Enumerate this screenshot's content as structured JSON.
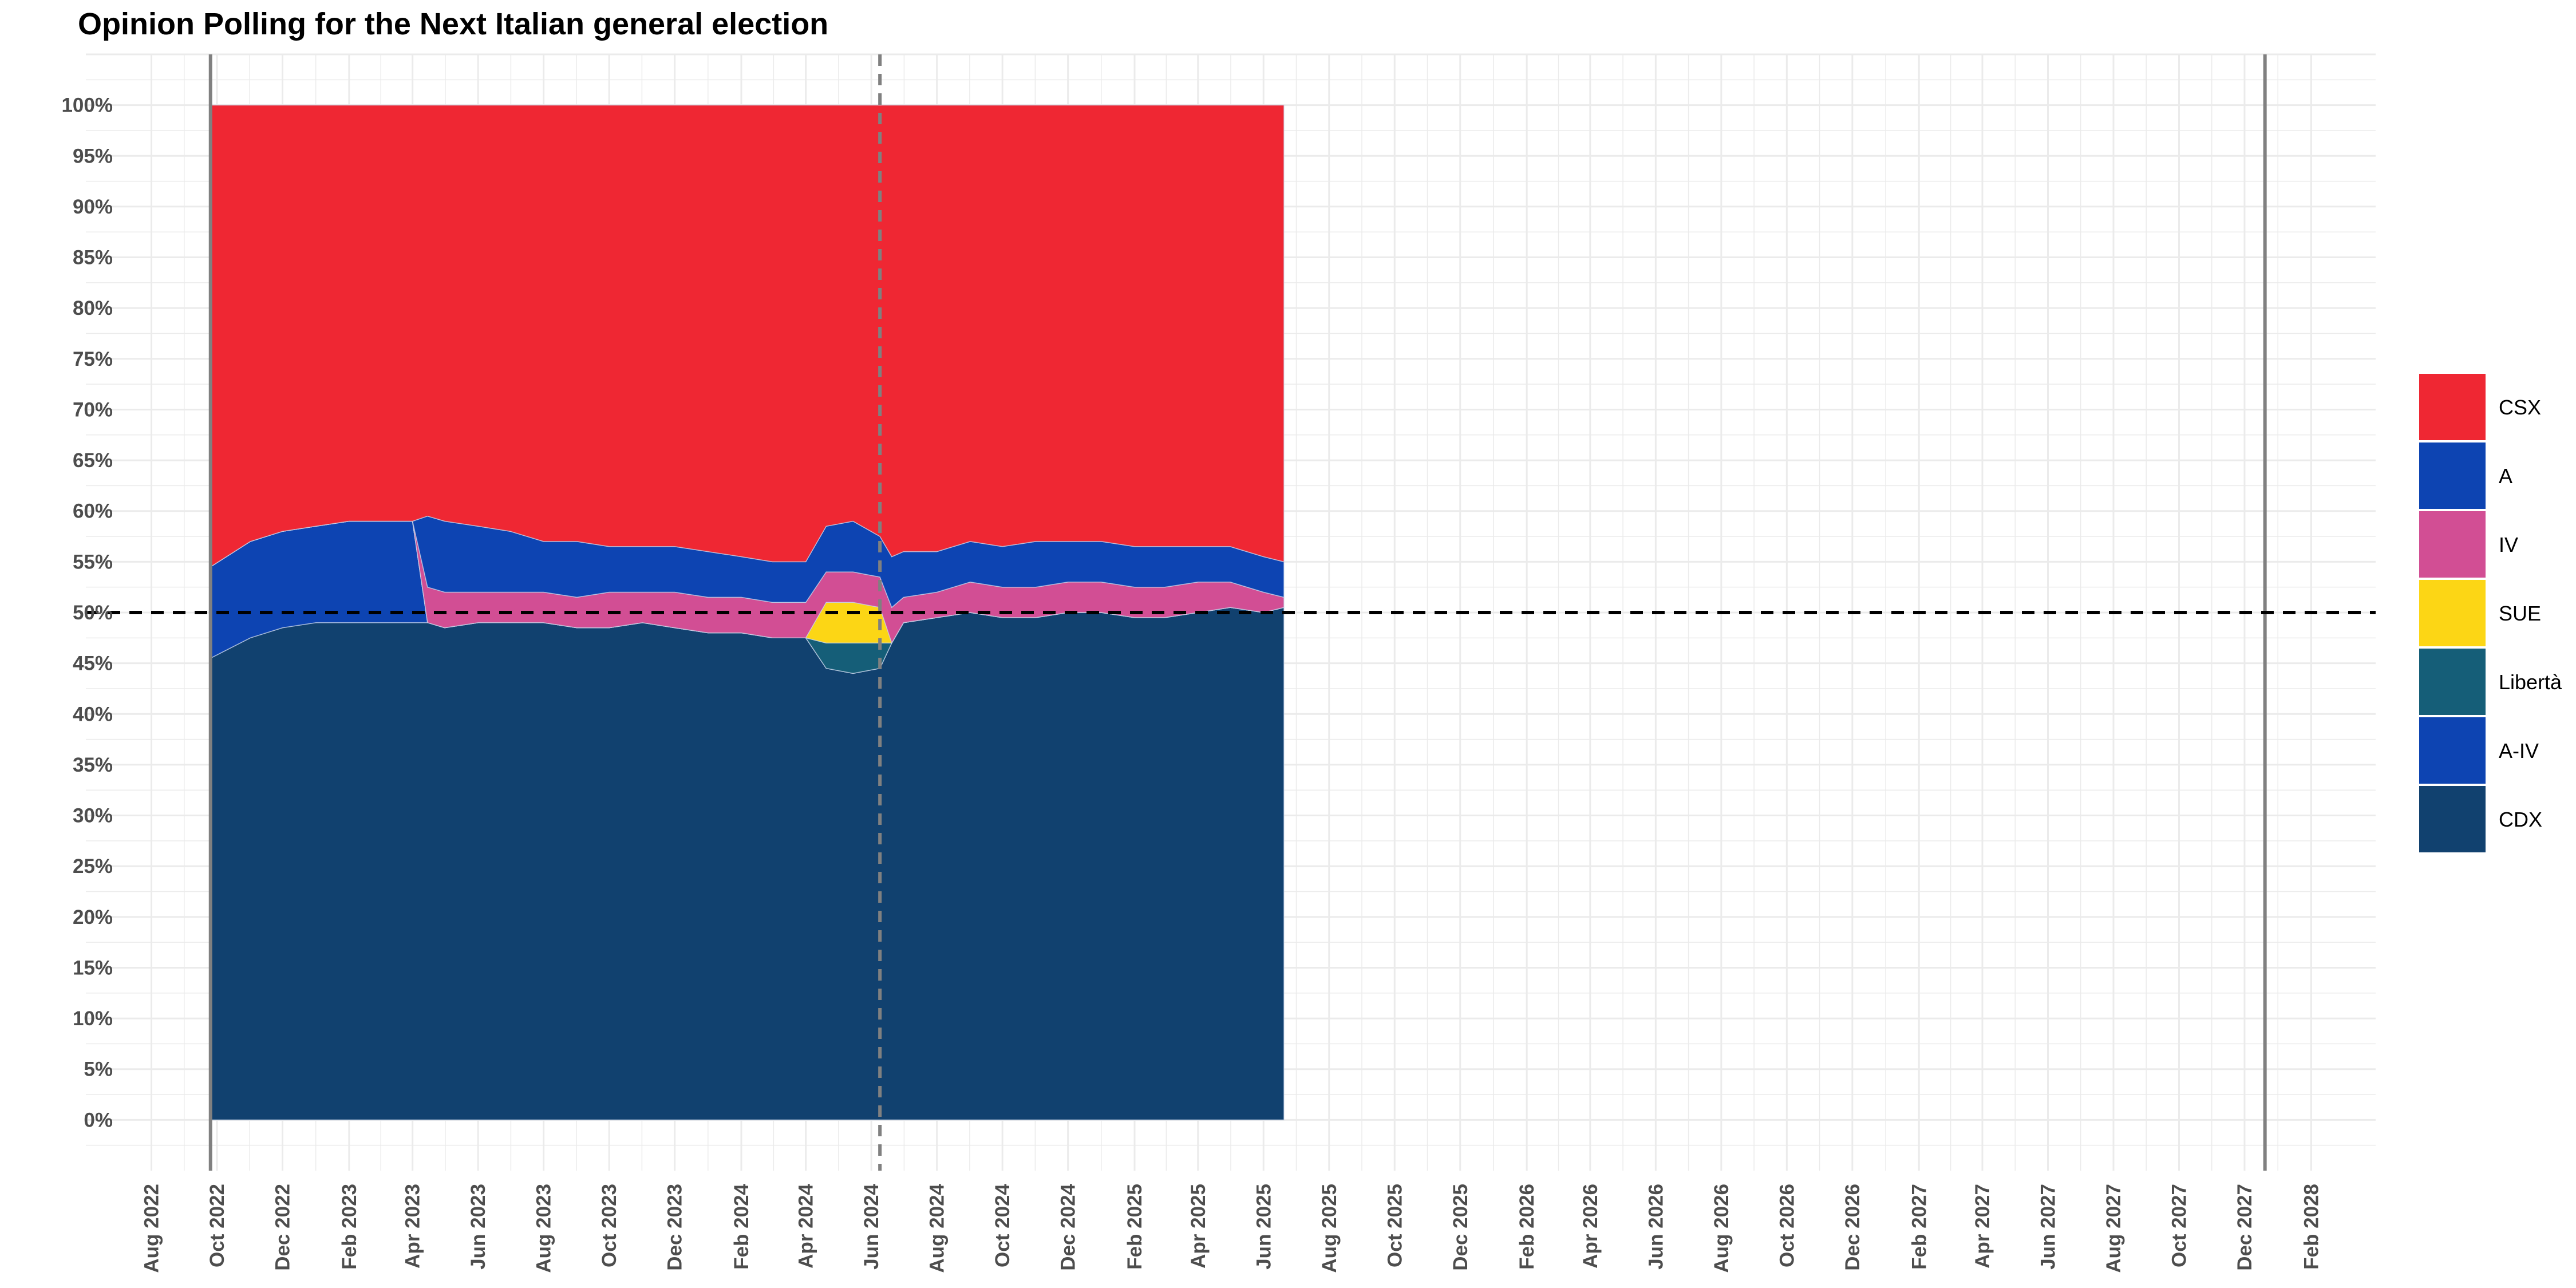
{
  "chart_data": {
    "type": "area",
    "stacked": true,
    "title": "Opinion Polling for the Next Italian general election",
    "xlabel": "",
    "ylabel": "",
    "x_range": [
      "2022-06-01",
      "2028-04-01"
    ],
    "ylim": [
      -5,
      105
    ],
    "y_ticks": [
      "0%",
      "5%",
      "10%",
      "15%",
      "20%",
      "25%",
      "30%",
      "35%",
      "40%",
      "45%",
      "50%",
      "55%",
      "60%",
      "65%",
      "70%",
      "75%",
      "80%",
      "85%",
      "90%",
      "95%",
      "100%"
    ],
    "x_ticks": [
      {
        "date": "2022-08-01",
        "label": "Aug 2022"
      },
      {
        "date": "2022-10-01",
        "label": "Oct 2022"
      },
      {
        "date": "2022-12-01",
        "label": "Dec 2022"
      },
      {
        "date": "2023-02-01",
        "label": "Feb 2023"
      },
      {
        "date": "2023-04-01",
        "label": "Apr 2023"
      },
      {
        "date": "2023-06-01",
        "label": "Jun 2023"
      },
      {
        "date": "2023-08-01",
        "label": "Aug 2023"
      },
      {
        "date": "2023-10-01",
        "label": "Oct 2023"
      },
      {
        "date": "2023-12-01",
        "label": "Dec 2023"
      },
      {
        "date": "2024-02-01",
        "label": "Feb 2024"
      },
      {
        "date": "2024-04-01",
        "label": "Apr 2024"
      },
      {
        "date": "2024-06-01",
        "label": "Jun 2024"
      },
      {
        "date": "2024-08-01",
        "label": "Aug 2024"
      },
      {
        "date": "2024-10-01",
        "label": "Oct 2024"
      },
      {
        "date": "2024-12-01",
        "label": "Dec 2024"
      },
      {
        "date": "2025-02-01",
        "label": "Feb 2025"
      },
      {
        "date": "2025-04-01",
        "label": "Apr 2025"
      },
      {
        "date": "2025-06-01",
        "label": "Jun 2025"
      },
      {
        "date": "2025-08-01",
        "label": "Aug 2025"
      },
      {
        "date": "2025-10-01",
        "label": "Oct 2025"
      },
      {
        "date": "2025-12-01",
        "label": "Dec 2025"
      },
      {
        "date": "2026-02-01",
        "label": "Feb 2026"
      },
      {
        "date": "2026-04-01",
        "label": "Apr 2026"
      },
      {
        "date": "2026-06-01",
        "label": "Jun 2026"
      },
      {
        "date": "2026-08-01",
        "label": "Aug 2026"
      },
      {
        "date": "2026-10-01",
        "label": "Oct 2026"
      },
      {
        "date": "2026-12-01",
        "label": "Dec 2026"
      },
      {
        "date": "2027-02-01",
        "label": "Feb 2027"
      },
      {
        "date": "2027-04-01",
        "label": "Apr 2027"
      },
      {
        "date": "2027-06-01",
        "label": "Jun 2027"
      },
      {
        "date": "2027-08-01",
        "label": "Aug 2027"
      },
      {
        "date": "2027-10-01",
        "label": "Oct 2027"
      },
      {
        "date": "2027-12-01",
        "label": "Dec 2027"
      },
      {
        "date": "2028-02-01",
        "label": "Feb 2028"
      }
    ],
    "reference_lines": [
      {
        "axis": "x",
        "date": "2022-09-25",
        "style": "solid",
        "color": "#808080"
      },
      {
        "axis": "x",
        "date": "2024-06-09",
        "style": "dashed",
        "color": "#808080"
      },
      {
        "axis": "x",
        "date": "2027-12-20",
        "style": "solid",
        "color": "#808080"
      },
      {
        "axis": "y",
        "value": 50,
        "style": "dashed",
        "color": "#000000"
      }
    ],
    "grid": true,
    "legend_position": "right",
    "legend": [
      {
        "name": "CSX",
        "color": "#ef2733"
      },
      {
        "name": "A",
        "color": "#0d44b2"
      },
      {
        "name": "IV",
        "color": "#d24e94"
      },
      {
        "name": "SUE",
        "color": "#fcd615"
      },
      {
        "name": "Libertà",
        "color": "#155e78"
      },
      {
        "name": "A-IV",
        "color": "#0d44b2"
      },
      {
        "name": "CDX",
        "color": "#11416f"
      }
    ],
    "stack_order_bottom_to_top": [
      "CDX",
      "A-IV",
      "Libertà",
      "SUE",
      "IV",
      "A",
      "CSX"
    ],
    "x": [
      "2022-09-25",
      "2022-11-01",
      "2022-12-01",
      "2023-01-01",
      "2023-02-01",
      "2023-03-01",
      "2023-04-01",
      "2023-04-15",
      "2023-05-01",
      "2023-06-01",
      "2023-07-01",
      "2023-08-01",
      "2023-09-01",
      "2023-10-01",
      "2023-11-01",
      "2023-12-01",
      "2024-01-01",
      "2024-02-01",
      "2024-03-01",
      "2024-04-01",
      "2024-04-20",
      "2024-05-15",
      "2024-06-09",
      "2024-06-20",
      "2024-07-01",
      "2024-08-01",
      "2024-09-01",
      "2024-10-01",
      "2024-11-01",
      "2024-12-01",
      "2025-01-01",
      "2025-02-01",
      "2025-03-01",
      "2025-04-01",
      "2025-05-01",
      "2025-06-01",
      "2025-06-20"
    ],
    "series": [
      {
        "name": "CDX",
        "values": [
          45.5,
          47.5,
          48.5,
          49,
          49,
          49,
          49,
          49,
          48.5,
          49,
          49,
          49,
          48.5,
          48.5,
          49,
          48.5,
          48,
          48,
          47.5,
          47.5,
          44.5,
          44,
          44.5,
          47,
          49,
          49.5,
          50,
          49.5,
          49.5,
          50,
          50,
          49.5,
          49.5,
          50,
          50.5,
          50,
          50.5
        ]
      },
      {
        "name": "A-IV",
        "values": [
          9,
          9.5,
          9.5,
          9.5,
          10,
          10,
          10,
          0,
          0,
          0,
          0,
          0,
          0,
          0,
          0,
          0,
          0,
          0,
          0,
          0,
          0,
          0,
          0,
          0,
          0,
          0,
          0,
          0,
          0,
          0,
          0,
          0,
          0,
          0,
          0,
          0,
          0
        ]
      },
      {
        "name": "Libertà",
        "values": [
          0,
          0,
          0,
          0,
          0,
          0,
          0,
          0,
          0,
          0,
          0,
          0,
          0,
          0,
          0,
          0,
          0,
          0,
          0,
          0,
          2.5,
          3,
          2.5,
          0,
          0,
          0,
          0,
          0,
          0,
          0,
          0,
          0,
          0,
          0,
          0,
          0,
          0
        ]
      },
      {
        "name": "SUE",
        "values": [
          0,
          0,
          0,
          0,
          0,
          0,
          0,
          0,
          0,
          0,
          0,
          0,
          0,
          0,
          0,
          0,
          0,
          0,
          0,
          0,
          4,
          4,
          3.5,
          0,
          0,
          0,
          0,
          0,
          0,
          0,
          0,
          0,
          0,
          0,
          0,
          0,
          0
        ]
      },
      {
        "name": "IV",
        "values": [
          0,
          0,
          0,
          0,
          0,
          0,
          0,
          3.5,
          3.5,
          3,
          3,
          3,
          3,
          3.5,
          3,
          3.5,
          3.5,
          3.5,
          3.5,
          3.5,
          3,
          3,
          3,
          3.5,
          2.5,
          2.5,
          3,
          3,
          3,
          3,
          3,
          3,
          3,
          3,
          2.5,
          2,
          1
        ]
      },
      {
        "name": "A",
        "values": [
          0,
          0,
          0,
          0,
          0,
          0,
          0,
          7,
          7,
          6.5,
          6,
          5,
          5.5,
          4.5,
          4.5,
          4.5,
          4.5,
          4,
          4,
          4,
          4.5,
          5,
          4,
          5,
          4.5,
          4,
          4,
          4,
          4.5,
          4,
          4,
          4,
          4,
          3.5,
          3.5,
          3.5,
          3.5
        ]
      },
      {
        "name": "CSX",
        "values": [
          45.5,
          43,
          42,
          41.5,
          41,
          41,
          41,
          40.5,
          41,
          41.5,
          42,
          43,
          43,
          43.5,
          43.5,
          43.5,
          44,
          44.5,
          45,
          45,
          41.5,
          41,
          42.5,
          44.5,
          44,
          44,
          43,
          43.5,
          43,
          43,
          43,
          43.5,
          43.5,
          43.5,
          43.5,
          44.5,
          45
        ]
      }
    ]
  }
}
